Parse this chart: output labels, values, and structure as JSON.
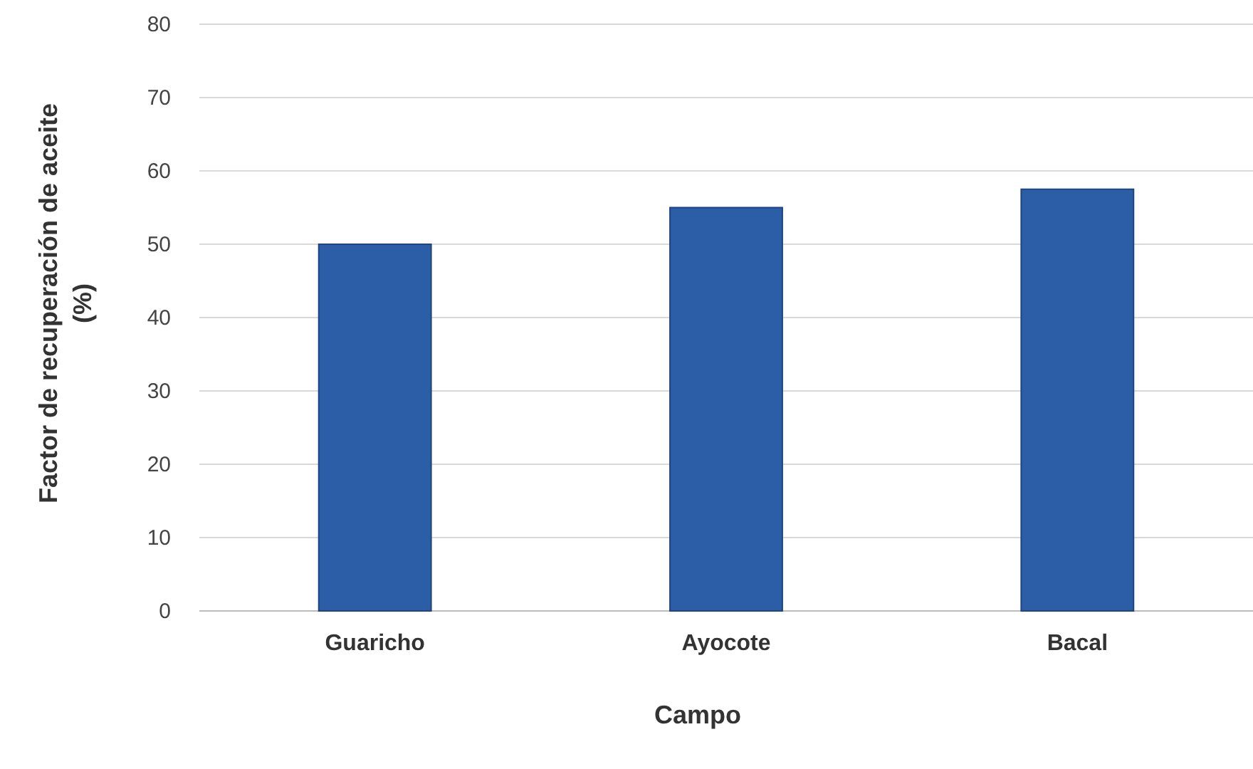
{
  "chart_data": {
    "type": "bar",
    "xlabel": "Campo",
    "ylabel": "Factor de recuperación de aceite (%)",
    "categories": [
      "Guaricho",
      "Ayocote",
      "Bacal"
    ],
    "values": [
      50,
      55,
      57.5
    ],
    "color": "#2b5ea6",
    "ylim": [
      0,
      80
    ],
    "yticks": [
      0,
      10,
      20,
      30,
      40,
      50,
      60,
      70,
      80
    ],
    "grid": "y"
  }
}
